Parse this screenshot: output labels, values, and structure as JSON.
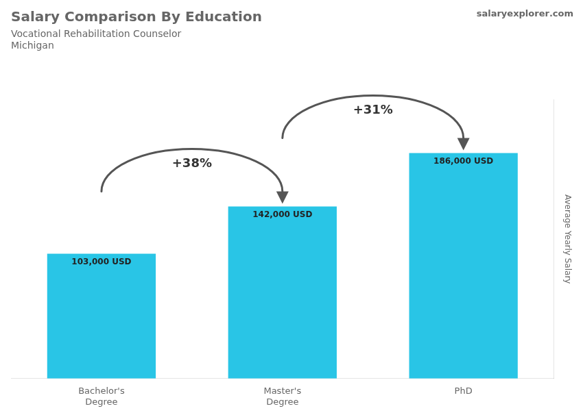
{
  "chart_data": {
    "type": "bar",
    "title": "Salary Comparison By Education",
    "subtitle": [
      "Vocational Rehabilitation Counselor",
      "Michigan"
    ],
    "watermark": [
      "salary",
      "explorer",
      ".com"
    ],
    "ylabel": "Average Yearly Salary",
    "categories": [
      "Bachelor's\nDegree",
      "Master's\nDegree",
      "PhD"
    ],
    "values": [
      103000,
      142000,
      186000
    ],
    "value_labels": [
      "103,000 USD",
      "142,000 USD",
      "186,000 USD"
    ],
    "data_labels": true,
    "annotations": [
      "+38%",
      "+31%"
    ],
    "color": "#29c5e6",
    "ylim": [
      0,
      230000
    ],
    "grid": false,
    "tick_labels": "x"
  }
}
